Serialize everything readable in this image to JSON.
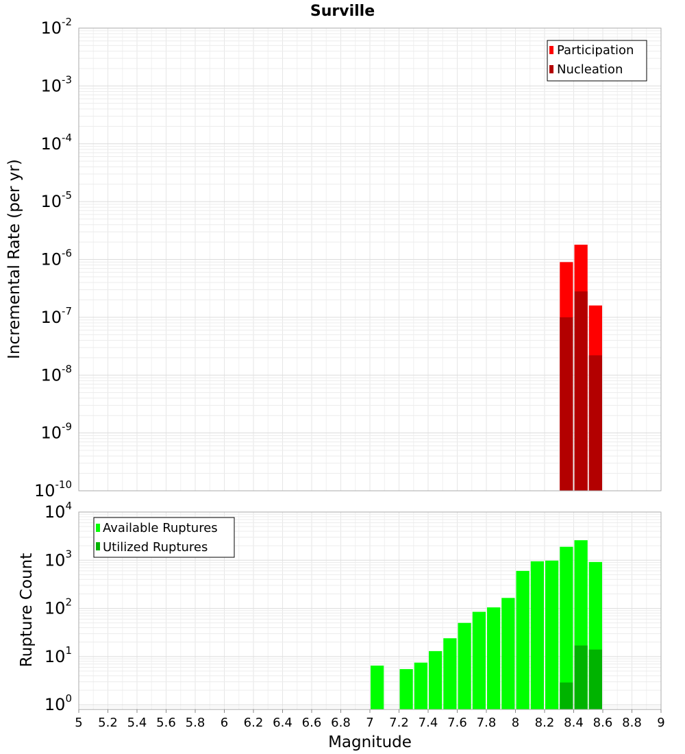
{
  "chart_data": [
    {
      "type": "bar",
      "title": "Surville",
      "ylabel": "Incremental Rate (per yr)",
      "xlabel": "",
      "scale": "log",
      "ylim": [
        1e-10,
        0.01
      ],
      "xlim": [
        5,
        9
      ],
      "grid": true,
      "legend_position": "top-right",
      "y_ticks": [
        {
          "base": "10",
          "exp": "-2",
          "value": 0.01
        },
        {
          "base": "10",
          "exp": "-3",
          "value": 0.001
        },
        {
          "base": "10",
          "exp": "-4",
          "value": 0.0001
        },
        {
          "base": "10",
          "exp": "-5",
          "value": 1e-05
        },
        {
          "base": "10",
          "exp": "-6",
          "value": 1e-06
        },
        {
          "base": "10",
          "exp": "-7",
          "value": 1e-07
        },
        {
          "base": "10",
          "exp": "-8",
          "value": 1e-08
        },
        {
          "base": "10",
          "exp": "-9",
          "value": 1e-09
        },
        {
          "base": "10",
          "exp": "-10",
          "value": 1e-10
        }
      ],
      "series": [
        {
          "name": "Participation",
          "color": "#ff0000",
          "x": [
            8.35,
            8.45,
            8.55
          ],
          "values": [
            9e-07,
            1.8e-06,
            1.6e-07
          ]
        },
        {
          "name": "Nucleation",
          "color": "#b30000",
          "x": [
            8.35,
            8.45,
            8.55
          ],
          "values": [
            1e-07,
            2.8e-07,
            2.2e-08
          ]
        }
      ]
    },
    {
      "type": "bar",
      "title": "",
      "ylabel": "Rupture Count",
      "xlabel": "Magnitude",
      "scale": "log",
      "ylim": [
        0.8,
        10000.0
      ],
      "xlim": [
        5,
        9
      ],
      "grid": true,
      "legend_position": "top-left",
      "x_tick_labels": [
        "5",
        "5.2",
        "5.4",
        "5.6",
        "5.8",
        "6",
        "6.2",
        "6.4",
        "6.6",
        "6.8",
        "7",
        "7.2",
        "7.4",
        "7.6",
        "7.8",
        "8",
        "8.2",
        "8.4",
        "8.6",
        "8.8",
        "9"
      ],
      "y_ticks": [
        {
          "base": "10",
          "exp": "4",
          "value": 10000.0
        },
        {
          "base": "10",
          "exp": "3",
          "value": 1000.0
        },
        {
          "base": "10",
          "exp": "2",
          "value": 100.0
        },
        {
          "base": "10",
          "exp": "1",
          "value": 10.0
        },
        {
          "base": "10",
          "exp": "0",
          "value": 1
        }
      ],
      "series": [
        {
          "name": "Available Ruptures",
          "color": "#00ff00",
          "x": [
            7.05,
            7.25,
            7.35,
            7.45,
            7.55,
            7.65,
            7.75,
            7.85,
            7.95,
            8.05,
            8.15,
            8.25,
            8.35,
            8.45,
            8.55
          ],
          "values": [
            6.5,
            5.5,
            7.5,
            13,
            24,
            50,
            85,
            105,
            165,
            600,
            950,
            980,
            1900,
            2600,
            920
          ]
        },
        {
          "name": "Utilized Ruptures",
          "color": "#00b300",
          "x": [
            8.35,
            8.45,
            8.55
          ],
          "values": [
            2.9,
            17,
            14
          ]
        }
      ]
    }
  ]
}
